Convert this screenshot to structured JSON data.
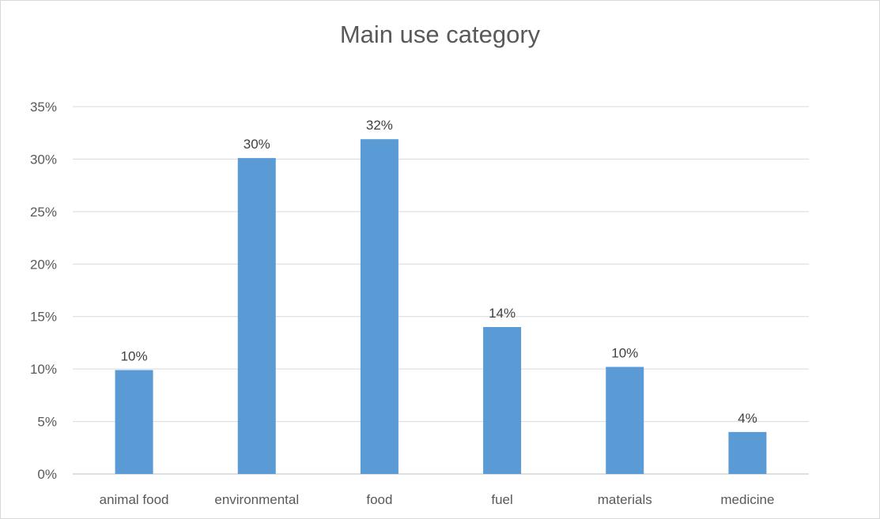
{
  "chart_data": {
    "type": "bar",
    "title": "Main use category",
    "xlabel": "",
    "ylabel": "",
    "categories": [
      "animal food",
      "environmental",
      "food",
      "fuel",
      "materials",
      "medicine"
    ],
    "values": [
      9.9,
      30.1,
      31.9,
      14.0,
      10.2,
      4.0
    ],
    "data_labels": [
      "10%",
      "30%",
      "32%",
      "14%",
      "10%",
      "4%"
    ],
    "ylim": [
      0,
      35
    ],
    "yticks": [
      0,
      5,
      10,
      15,
      20,
      25,
      30,
      35
    ],
    "ytick_labels": [
      "0%",
      "5%",
      "10%",
      "15%",
      "20%",
      "25%",
      "30%",
      "35%"
    ],
    "grid": true,
    "legend": "none",
    "bar_color": "#5b9bd5"
  }
}
